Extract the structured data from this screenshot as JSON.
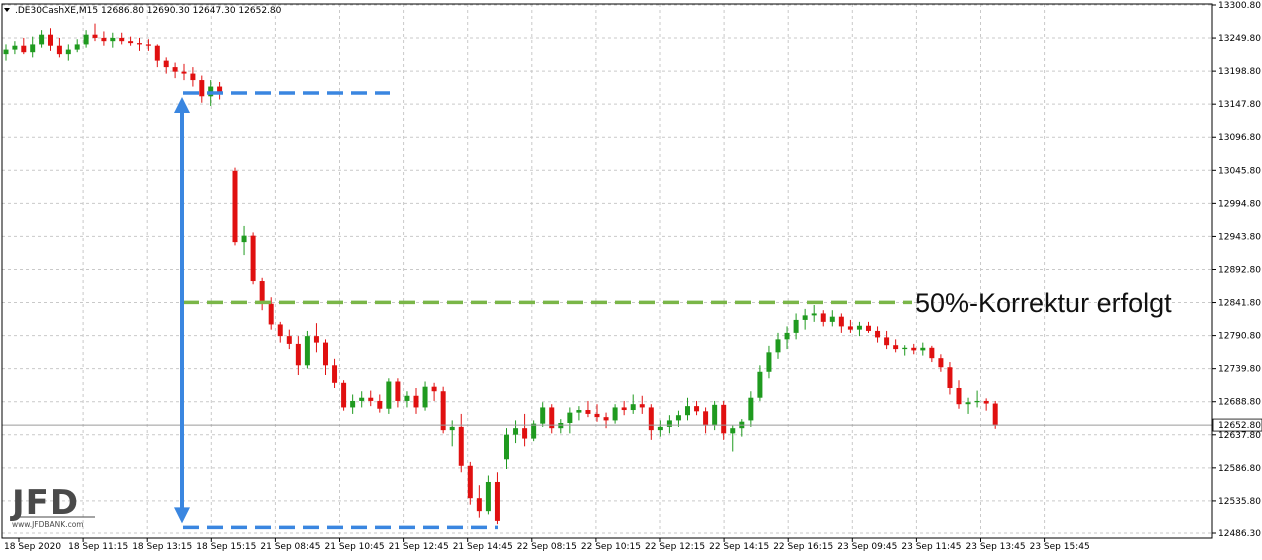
{
  "header": {
    "symbol": ".DE30CashXE,M15",
    "ohlc": "12686.80 12690.30 12647.30 12652.80"
  },
  "annotation": {
    "text": "50%-Korrektur erfolgt"
  },
  "logo": {
    "main": "JFD",
    "sub": "www.JFDBANK.com"
  },
  "colors": {
    "bull": "#1f9a1f",
    "bear": "#e01010",
    "grid": "#c9c9c9",
    "arrow": "#3a86e0",
    "retrace": "#7ab648",
    "price_label_bg": "#ffffff"
  },
  "chart_data": {
    "type": "candlestick",
    "ylim": [
      12486.3,
      13300.8
    ],
    "grid": true,
    "price_ticks": [
      "13300.80",
      "13249.80",
      "13198.80",
      "13147.80",
      "13096.80",
      "13045.80",
      "12994.80",
      "12943.80",
      "12892.80",
      "12841.80",
      "12790.80",
      "12739.80",
      "12688.80",
      "12637.80",
      "12586.80",
      "12535.80",
      "12486.30"
    ],
    "last_price": 12652.8,
    "last_price_label": "12652.80",
    "time_labels": [
      "18 Sep 2020",
      "18 Sep 11:15",
      "18 Sep 13:15",
      "18 Sep 15:15",
      "21 Sep 08:45",
      "21 Sep 10:45",
      "21 Sep 12:45",
      "21 Sep 14:45",
      "22 Sep 08:15",
      "22 Sep 10:15",
      "22 Sep 12:15",
      "22 Sep 14:15",
      "22 Sep 16:15",
      "23 Sep 09:45",
      "23 Sep 11:45",
      "23 Sep 13:45",
      "23 Sep 15:45"
    ],
    "ohlc": [
      [
        13225,
        13240,
        13215,
        13232
      ],
      [
        13232,
        13245,
        13225,
        13238
      ],
      [
        13238,
        13250,
        13225,
        13228
      ],
      [
        13228,
        13252,
        13220,
        13240
      ],
      [
        13240,
        13262,
        13235,
        13255
      ],
      [
        13255,
        13265,
        13230,
        13238
      ],
      [
        13238,
        13250,
        13220,
        13225
      ],
      [
        13225,
        13240,
        13215,
        13232
      ],
      [
        13232,
        13248,
        13228,
        13240
      ],
      [
        13240,
        13262,
        13235,
        13255
      ],
      [
        13255,
        13272,
        13245,
        13250
      ],
      [
        13250,
        13260,
        13238,
        13245
      ],
      [
        13245,
        13258,
        13235,
        13250
      ],
      [
        13250,
        13258,
        13240,
        13245
      ],
      [
        13245,
        13252,
        13238,
        13242
      ],
      [
        13242,
        13250,
        13230,
        13240
      ],
      [
        13240,
        13248,
        13230,
        13238
      ],
      [
        13238,
        13240,
        13205,
        13215
      ],
      [
        13215,
        13220,
        13195,
        13205
      ],
      [
        13205,
        13212,
        13188,
        13198
      ],
      [
        13198,
        13210,
        13185,
        13195
      ],
      [
        13195,
        13205,
        13175,
        13185
      ],
      [
        13185,
        13192,
        13150,
        13160
      ],
      [
        13160,
        13185,
        13145,
        13175
      ],
      [
        13175,
        13182,
        13155,
        13163
      ],
      [
        13045,
        13050,
        12930,
        12935
      ],
      [
        12935,
        12960,
        12915,
        12945
      ],
      [
        12945,
        12950,
        12870,
        12875
      ],
      [
        12875,
        12880,
        12830,
        12840
      ],
      [
        12840,
        12850,
        12800,
        12808
      ],
      [
        12808,
        12812,
        12780,
        12790
      ],
      [
        12790,
        12800,
        12770,
        12778
      ],
      [
        12778,
        12790,
        12730,
        12745
      ],
      [
        12745,
        12798,
        12740,
        12790
      ],
      [
        12790,
        12810,
        12765,
        12780
      ],
      [
        12780,
        12785,
        12730,
        12745
      ],
      [
        12745,
        12755,
        12710,
        12718
      ],
      [
        12718,
        12722,
        12675,
        12680
      ],
      [
        12680,
        12700,
        12670,
        12690
      ],
      [
        12690,
        12705,
        12680,
        12695
      ],
      [
        12695,
        12706,
        12682,
        12690
      ],
      [
        12690,
        12700,
        12672,
        12678
      ],
      [
        12678,
        12725,
        12670,
        12720
      ],
      [
        12720,
        12725,
        12680,
        12690
      ],
      [
        12690,
        12705,
        12680,
        12698
      ],
      [
        12698,
        12710,
        12670,
        12680
      ],
      [
        12680,
        12720,
        12675,
        12712
      ],
      [
        12712,
        12718,
        12690,
        12705
      ],
      [
        12705,
        12712,
        12640,
        12645
      ],
      [
        12645,
        12660,
        12620,
        12650
      ],
      [
        12650,
        12670,
        12580,
        12590
      ],
      [
        12590,
        12596,
        12530,
        12540
      ],
      [
        12540,
        12560,
        12510,
        12520
      ],
      [
        12520,
        12575,
        12515,
        12565
      ],
      [
        12565,
        12580,
        12500,
        12505
      ],
      [
        12600,
        12648,
        12585,
        12638
      ],
      [
        12638,
        12660,
        12625,
        12648
      ],
      [
        12648,
        12670,
        12620,
        12632
      ],
      [
        12632,
        12660,
        12628,
        12655
      ],
      [
        12655,
        12688,
        12650,
        12680
      ],
      [
        12680,
        12685,
        12640,
        12648
      ],
      [
        12648,
        12662,
        12640,
        12656
      ],
      [
        12656,
        12680,
        12640,
        12672
      ],
      [
        12672,
        12682,
        12660,
        12676
      ],
      [
        12676,
        12690,
        12665,
        12670
      ],
      [
        12670,
        12685,
        12658,
        12665
      ],
      [
        12665,
        12672,
        12648,
        12660
      ],
      [
        12660,
        12685,
        12655,
        12680
      ],
      [
        12680,
        12690,
        12668,
        12676
      ],
      [
        12676,
        12700,
        12670,
        12685
      ],
      [
        12685,
        12698,
        12670,
        12680
      ],
      [
        12680,
        12685,
        12630,
        12645
      ],
      [
        12645,
        12660,
        12635,
        12650
      ],
      [
        12650,
        12668,
        12640,
        12660
      ],
      [
        12660,
        12675,
        12650,
        12668
      ],
      [
        12668,
        12695,
        12660,
        12682
      ],
      [
        12682,
        12690,
        12668,
        12674
      ],
      [
        12674,
        12680,
        12640,
        12652
      ],
      [
        12652,
        12690,
        12645,
        12684
      ],
      [
        12684,
        12690,
        12630,
        12640
      ],
      [
        12640,
        12652,
        12612,
        12648
      ],
      [
        12648,
        12662,
        12635,
        12658
      ],
      [
        12660,
        12705,
        12650,
        12695
      ],
      [
        12695,
        12745,
        12690,
        12735
      ],
      [
        12735,
        12775,
        12725,
        12765
      ],
      [
        12765,
        12795,
        12755,
        12785
      ],
      [
        12785,
        12805,
        12770,
        12795
      ],
      [
        12795,
        12825,
        12785,
        12815
      ],
      [
        12815,
        12832,
        12800,
        12822
      ],
      [
        12822,
        12838,
        12812,
        12825
      ],
      [
        12825,
        12830,
        12805,
        12812
      ],
      [
        12812,
        12830,
        12805,
        12820
      ],
      [
        12820,
        12825,
        12795,
        12805
      ],
      [
        12805,
        12815,
        12795,
        12800
      ],
      [
        12800,
        12812,
        12790,
        12806
      ],
      [
        12806,
        12812,
        12795,
        12798
      ],
      [
        12798,
        12805,
        12780,
        12788
      ],
      [
        12788,
        12798,
        12770,
        12776
      ],
      [
        12776,
        12785,
        12765,
        12770
      ],
      [
        12770,
        12776,
        12760,
        12772
      ],
      [
        12772,
        12778,
        12762,
        12768
      ],
      [
        12768,
        12780,
        12760,
        12772
      ],
      [
        12772,
        12775,
        12750,
        12756
      ],
      [
        12756,
        12762,
        12735,
        12742
      ],
      [
        12742,
        12750,
        12700,
        12710
      ],
      [
        12710,
        12722,
        12678,
        12685
      ],
      [
        12685,
        12695,
        12670,
        12688
      ],
      [
        12688,
        12706,
        12680,
        12690
      ],
      [
        12690,
        12694,
        12675,
        12686
      ],
      [
        12686,
        12690,
        12647,
        12652
      ]
    ]
  }
}
